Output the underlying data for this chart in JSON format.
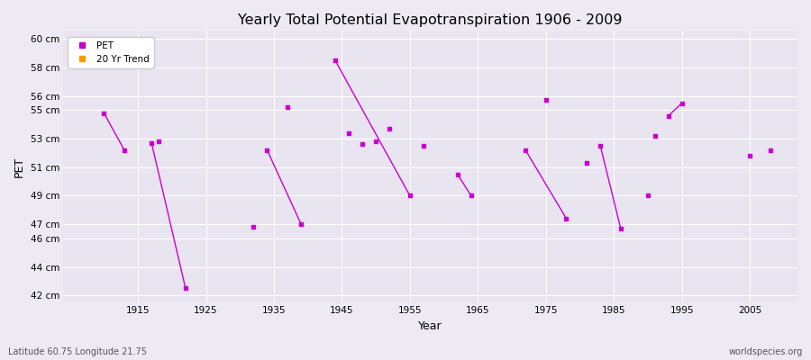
{
  "title": "Yearly Total Potential Evapotranspiration 1906 - 2009",
  "xlabel": "Year",
  "ylabel": "PET",
  "subtitle_left": "Latitude 60.75 Longitude 21.75",
  "subtitle_right": "worldspecies.org",
  "background_color": "#eeeaf4",
  "plot_bg_color": "#e8e4f0",
  "grid_color": "#ffffff",
  "ylim": [
    41.5,
    60.5
  ],
  "xlim": [
    1904,
    2012
  ],
  "yticks": [
    42,
    44,
    46,
    47,
    49,
    51,
    53,
    55,
    56,
    58,
    60
  ],
  "ytick_labels": [
    "42 cm",
    "44 cm",
    "46 cm",
    "47 cm",
    "49 cm",
    "51 cm",
    "53 cm",
    "55 cm",
    "56 cm",
    "58 cm",
    "60 cm"
  ],
  "xticks": [
    1915,
    1925,
    1935,
    1945,
    1955,
    1965,
    1975,
    1985,
    1995,
    2005
  ],
  "pet_color": "#cc00cc",
  "trend_color": "#ff9900",
  "pet_data": [
    [
      1910,
      54.8
    ],
    [
      1913,
      52.2
    ],
    [
      1917,
      52.7
    ],
    [
      1918,
      52.8
    ],
    [
      1922,
      42.5
    ],
    [
      1932,
      46.8
    ],
    [
      1934,
      52.2
    ],
    [
      1937,
      55.2
    ],
    [
      1939,
      47.0
    ],
    [
      1944,
      58.5
    ],
    [
      1946,
      53.4
    ],
    [
      1948,
      52.6
    ],
    [
      1950,
      52.8
    ],
    [
      1952,
      53.7
    ],
    [
      1955,
      49.0
    ],
    [
      1957,
      52.5
    ],
    [
      1962,
      50.5
    ],
    [
      1964,
      49.0
    ],
    [
      1972,
      52.2
    ],
    [
      1975,
      55.7
    ],
    [
      1978,
      47.4
    ],
    [
      1981,
      51.3
    ],
    [
      1983,
      52.5
    ],
    [
      1986,
      46.7
    ],
    [
      1990,
      49.0
    ],
    [
      1991,
      53.2
    ],
    [
      1993,
      54.6
    ],
    [
      1995,
      55.5
    ],
    [
      2005,
      51.8
    ],
    [
      2008,
      52.2
    ]
  ],
  "line_segments": [
    [
      [
        1910,
        54.8
      ],
      [
        1913,
        52.2
      ]
    ],
    [
      [
        1917,
        52.7
      ],
      [
        1922,
        42.5
      ]
    ],
    [
      [
        1934,
        52.2
      ],
      [
        1939,
        47.0
      ]
    ],
    [
      [
        1944,
        58.5
      ],
      [
        1955,
        49.0
      ]
    ],
    [
      [
        1962,
        50.5
      ],
      [
        1964,
        49.0
      ]
    ],
    [
      [
        1972,
        52.2
      ],
      [
        1978,
        47.4
      ]
    ],
    [
      [
        1983,
        52.5
      ],
      [
        1986,
        46.7
      ]
    ],
    [
      [
        1993,
        54.6
      ],
      [
        1995,
        55.5
      ]
    ]
  ]
}
